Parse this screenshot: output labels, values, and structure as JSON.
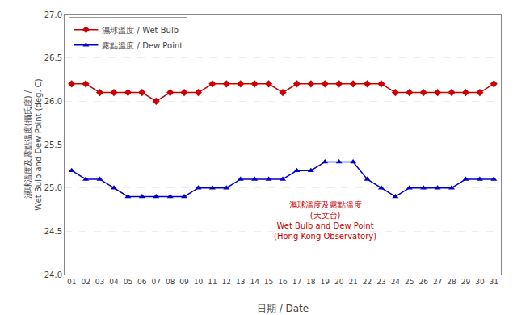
{
  "chart_data": {
    "type": "line",
    "xlabel": "日期 / Date",
    "ylabel": "濕球溫度及露點溫度(攝氏度) /\nWet Bulb and Dew Point (deg. C)",
    "x": [
      1,
      2,
      3,
      4,
      5,
      6,
      7,
      8,
      9,
      10,
      11,
      12,
      13,
      14,
      15,
      16,
      17,
      18,
      19,
      20,
      21,
      22,
      23,
      24,
      25,
      26,
      27,
      28,
      29,
      30,
      31
    ],
    "series": [
      {
        "name": "濕球溫度 / Wet Bulb",
        "color": "#cc0000",
        "marker": "diamond",
        "values": [
          26.2,
          26.2,
          26.1,
          26.1,
          26.1,
          26.1,
          26.0,
          26.1,
          26.1,
          26.1,
          26.2,
          26.2,
          26.2,
          26.2,
          26.2,
          26.1,
          26.2,
          26.2,
          26.2,
          26.2,
          26.2,
          26.2,
          26.2,
          26.1,
          26.1,
          26.1,
          26.1,
          26.1,
          26.1,
          26.1,
          26.2
        ]
      },
      {
        "name": "露點溫度 / Dew Point",
        "color": "#0000cc",
        "marker": "triangle-up",
        "values": [
          25.2,
          25.1,
          25.1,
          25.0,
          24.9,
          24.9,
          24.9,
          24.9,
          24.9,
          25.0,
          25.0,
          25.0,
          25.1,
          25.1,
          25.1,
          25.1,
          25.2,
          25.2,
          25.3,
          25.3,
          25.3,
          25.1,
          25.0,
          24.9,
          25.0,
          25.0,
          25.0,
          25.0,
          25.1,
          25.1,
          25.1
        ]
      }
    ],
    "xlim": [
      0.5,
      31.5
    ],
    "xticks": [
      {
        "value": 1,
        "label": "01"
      },
      {
        "value": 2,
        "label": "02"
      },
      {
        "value": 3,
        "label": "03"
      },
      {
        "value": 4,
        "label": "04"
      },
      {
        "value": 5,
        "label": "05"
      },
      {
        "value": 6,
        "label": "06"
      },
      {
        "value": 7,
        "label": "07"
      },
      {
        "value": 8,
        "label": "08"
      },
      {
        "value": 9,
        "label": "09"
      },
      10,
      11,
      12,
      13,
      14,
      15,
      16,
      17,
      18,
      19,
      20,
      21,
      22,
      23,
      24,
      25,
      26,
      27,
      28,
      29,
      30,
      31
    ],
    "ylim": [
      24.0,
      27.0
    ],
    "yticks": [
      {
        "value": 24.0,
        "label": "24.0"
      },
      24.5,
      {
        "value": 25.0,
        "label": "25.0"
      },
      25.5,
      {
        "value": 26.0,
        "label": "26.0"
      },
      26.5,
      {
        "value": 27.0,
        "label": "27.0"
      }
    ],
    "grid": true,
    "legend": "upper left",
    "annotations": [
      {
        "text": "濕球溫度及露點溫度\n(天文台)\nWet Bulb and Dew Point\n(Hong Kong Observatory)",
        "x": 19,
        "y": 24.62,
        "color": "#cc0000"
      }
    ]
  }
}
